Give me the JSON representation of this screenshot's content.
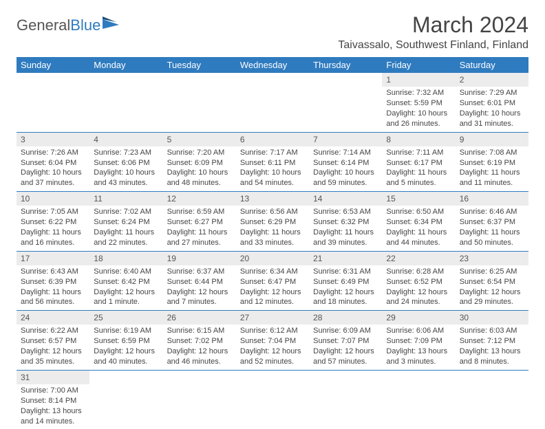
{
  "brand": {
    "part1": "General",
    "part2": "Blue"
  },
  "title": "March 2024",
  "location": "Taivassalo, Southwest Finland, Finland",
  "colors": {
    "header_bg": "#2f7bbf",
    "daynum_bg": "#ececec",
    "border": "#2f7bbf"
  },
  "weekdays": [
    "Sunday",
    "Monday",
    "Tuesday",
    "Wednesday",
    "Thursday",
    "Friday",
    "Saturday"
  ],
  "weeks": [
    [
      null,
      null,
      null,
      null,
      null,
      {
        "n": "1",
        "sr": "Sunrise: 7:32 AM",
        "ss": "Sunset: 5:59 PM",
        "dl": "Daylight: 10 hours and 26 minutes."
      },
      {
        "n": "2",
        "sr": "Sunrise: 7:29 AM",
        "ss": "Sunset: 6:01 PM",
        "dl": "Daylight: 10 hours and 31 minutes."
      }
    ],
    [
      {
        "n": "3",
        "sr": "Sunrise: 7:26 AM",
        "ss": "Sunset: 6:04 PM",
        "dl": "Daylight: 10 hours and 37 minutes."
      },
      {
        "n": "4",
        "sr": "Sunrise: 7:23 AM",
        "ss": "Sunset: 6:06 PM",
        "dl": "Daylight: 10 hours and 43 minutes."
      },
      {
        "n": "5",
        "sr": "Sunrise: 7:20 AM",
        "ss": "Sunset: 6:09 PM",
        "dl": "Daylight: 10 hours and 48 minutes."
      },
      {
        "n": "6",
        "sr": "Sunrise: 7:17 AM",
        "ss": "Sunset: 6:11 PM",
        "dl": "Daylight: 10 hours and 54 minutes."
      },
      {
        "n": "7",
        "sr": "Sunrise: 7:14 AM",
        "ss": "Sunset: 6:14 PM",
        "dl": "Daylight: 10 hours and 59 minutes."
      },
      {
        "n": "8",
        "sr": "Sunrise: 7:11 AM",
        "ss": "Sunset: 6:17 PM",
        "dl": "Daylight: 11 hours and 5 minutes."
      },
      {
        "n": "9",
        "sr": "Sunrise: 7:08 AM",
        "ss": "Sunset: 6:19 PM",
        "dl": "Daylight: 11 hours and 11 minutes."
      }
    ],
    [
      {
        "n": "10",
        "sr": "Sunrise: 7:05 AM",
        "ss": "Sunset: 6:22 PM",
        "dl": "Daylight: 11 hours and 16 minutes."
      },
      {
        "n": "11",
        "sr": "Sunrise: 7:02 AM",
        "ss": "Sunset: 6:24 PM",
        "dl": "Daylight: 11 hours and 22 minutes."
      },
      {
        "n": "12",
        "sr": "Sunrise: 6:59 AM",
        "ss": "Sunset: 6:27 PM",
        "dl": "Daylight: 11 hours and 27 minutes."
      },
      {
        "n": "13",
        "sr": "Sunrise: 6:56 AM",
        "ss": "Sunset: 6:29 PM",
        "dl": "Daylight: 11 hours and 33 minutes."
      },
      {
        "n": "14",
        "sr": "Sunrise: 6:53 AM",
        "ss": "Sunset: 6:32 PM",
        "dl": "Daylight: 11 hours and 39 minutes."
      },
      {
        "n": "15",
        "sr": "Sunrise: 6:50 AM",
        "ss": "Sunset: 6:34 PM",
        "dl": "Daylight: 11 hours and 44 minutes."
      },
      {
        "n": "16",
        "sr": "Sunrise: 6:46 AM",
        "ss": "Sunset: 6:37 PM",
        "dl": "Daylight: 11 hours and 50 minutes."
      }
    ],
    [
      {
        "n": "17",
        "sr": "Sunrise: 6:43 AM",
        "ss": "Sunset: 6:39 PM",
        "dl": "Daylight: 11 hours and 56 minutes."
      },
      {
        "n": "18",
        "sr": "Sunrise: 6:40 AM",
        "ss": "Sunset: 6:42 PM",
        "dl": "Daylight: 12 hours and 1 minute."
      },
      {
        "n": "19",
        "sr": "Sunrise: 6:37 AM",
        "ss": "Sunset: 6:44 PM",
        "dl": "Daylight: 12 hours and 7 minutes."
      },
      {
        "n": "20",
        "sr": "Sunrise: 6:34 AM",
        "ss": "Sunset: 6:47 PM",
        "dl": "Daylight: 12 hours and 12 minutes."
      },
      {
        "n": "21",
        "sr": "Sunrise: 6:31 AM",
        "ss": "Sunset: 6:49 PM",
        "dl": "Daylight: 12 hours and 18 minutes."
      },
      {
        "n": "22",
        "sr": "Sunrise: 6:28 AM",
        "ss": "Sunset: 6:52 PM",
        "dl": "Daylight: 12 hours and 24 minutes."
      },
      {
        "n": "23",
        "sr": "Sunrise: 6:25 AM",
        "ss": "Sunset: 6:54 PM",
        "dl": "Daylight: 12 hours and 29 minutes."
      }
    ],
    [
      {
        "n": "24",
        "sr": "Sunrise: 6:22 AM",
        "ss": "Sunset: 6:57 PM",
        "dl": "Daylight: 12 hours and 35 minutes."
      },
      {
        "n": "25",
        "sr": "Sunrise: 6:19 AM",
        "ss": "Sunset: 6:59 PM",
        "dl": "Daylight: 12 hours and 40 minutes."
      },
      {
        "n": "26",
        "sr": "Sunrise: 6:15 AM",
        "ss": "Sunset: 7:02 PM",
        "dl": "Daylight: 12 hours and 46 minutes."
      },
      {
        "n": "27",
        "sr": "Sunrise: 6:12 AM",
        "ss": "Sunset: 7:04 PM",
        "dl": "Daylight: 12 hours and 52 minutes."
      },
      {
        "n": "28",
        "sr": "Sunrise: 6:09 AM",
        "ss": "Sunset: 7:07 PM",
        "dl": "Daylight: 12 hours and 57 minutes."
      },
      {
        "n": "29",
        "sr": "Sunrise: 6:06 AM",
        "ss": "Sunset: 7:09 PM",
        "dl": "Daylight: 13 hours and 3 minutes."
      },
      {
        "n": "30",
        "sr": "Sunrise: 6:03 AM",
        "ss": "Sunset: 7:12 PM",
        "dl": "Daylight: 13 hours and 8 minutes."
      }
    ],
    [
      {
        "n": "31",
        "sr": "Sunrise: 7:00 AM",
        "ss": "Sunset: 8:14 PM",
        "dl": "Daylight: 13 hours and 14 minutes."
      },
      null,
      null,
      null,
      null,
      null,
      null
    ]
  ]
}
